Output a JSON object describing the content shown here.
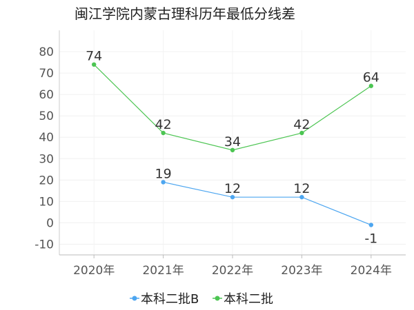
{
  "chart_data": {
    "type": "line",
    "title": "闽江学院内蒙古理科历年最低分线差",
    "categories": [
      "2020年",
      "2021年",
      "2022年",
      "2023年",
      "2024年"
    ],
    "ylim": [
      -15,
      90
    ],
    "yticks": [
      -10,
      0,
      10,
      20,
      30,
      40,
      50,
      60,
      70,
      80
    ],
    "grid": true,
    "legend_position": "bottom",
    "series": [
      {
        "name": "本科二批B",
        "color": "#4da6f0",
        "values": [
          null,
          19,
          12,
          12,
          -1
        ]
      },
      {
        "name": "本科二批",
        "color": "#4cc552",
        "values": [
          74,
          42,
          34,
          42,
          64
        ]
      }
    ]
  }
}
